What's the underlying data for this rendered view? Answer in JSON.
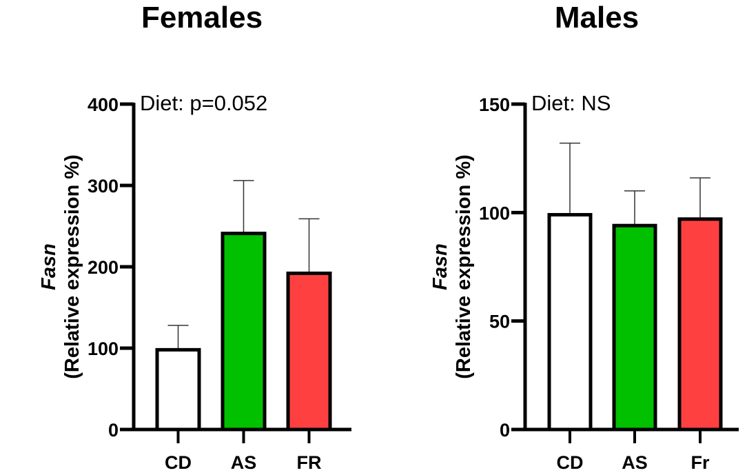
{
  "chart_data": [
    {
      "type": "bar",
      "title": "Females",
      "annotation": "Diet: p=0.052",
      "ylabel_gene": "Fasn",
      "ylabel": "(Relative expression %)",
      "categories": [
        "CD",
        "AS",
        "FR"
      ],
      "values": [
        98,
        241,
        192
      ],
      "error_upper": [
        128,
        306,
        259
      ],
      "colors": [
        "#ffffff",
        "#00c000",
        "#ff4040"
      ],
      "ylim": [
        0,
        400
      ],
      "yticks": [
        0,
        100,
        200,
        300,
        400
      ],
      "grid": false
    },
    {
      "type": "bar",
      "title": "Males",
      "annotation": "Diet: NS",
      "ylabel_gene": "Fasn",
      "ylabel": "(Relative expression %)",
      "categories": [
        "CD",
        "AS",
        "Fr"
      ],
      "values": [
        99,
        94,
        97
      ],
      "error_upper": [
        132,
        110,
        116
      ],
      "colors": [
        "#ffffff",
        "#00c000",
        "#ff4040"
      ],
      "ylim": [
        0,
        150
      ],
      "yticks": [
        0,
        50,
        100,
        150
      ],
      "grid": false
    }
  ]
}
